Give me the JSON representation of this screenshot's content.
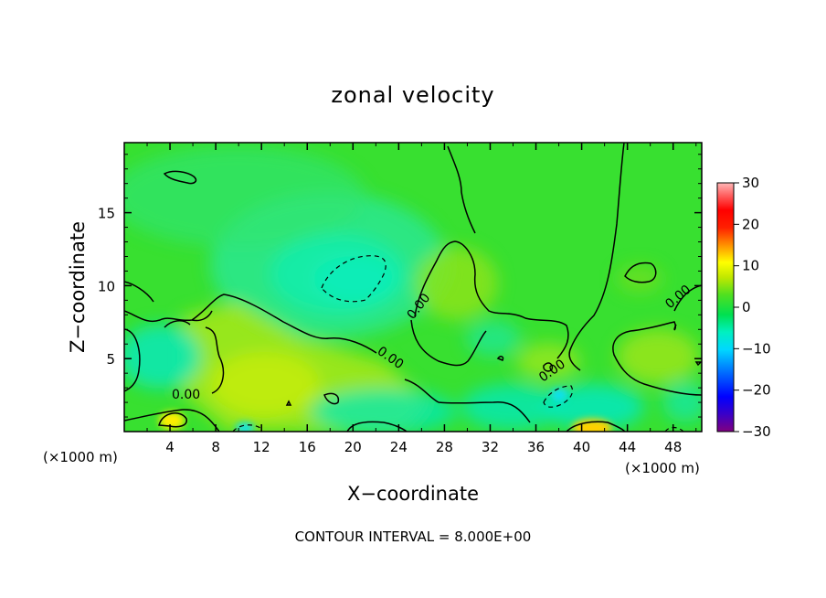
{
  "chart_data": {
    "type": "heatmap",
    "title": "zonal velocity",
    "xlabel": "X−coordinate",
    "ylabel": "Z−coordinate",
    "x_unit_left": "(×1000 m)",
    "x_unit_right": "(×1000 m)",
    "footer": "CONTOUR INTERVAL = 8.000E+00",
    "xlim": [
      0,
      50.5
    ],
    "ylim": [
      0,
      19.8
    ],
    "x_ticks": [
      "4",
      "8",
      "12",
      "16",
      "20",
      "24",
      "28",
      "32",
      "36",
      "40",
      "44",
      "48"
    ],
    "y_ticks": [
      "5",
      "10",
      "15"
    ],
    "colorbar": {
      "range": [
        -30,
        30
      ],
      "ticks": [
        "30",
        "20",
        "10",
        "0",
        "−10",
        "−20",
        "−30"
      ],
      "colors": [
        "#800080",
        "#3a00c8",
        "#0000ff",
        "#0070ff",
        "#00d8ff",
        "#00f0c0",
        "#00e050",
        "#50e020",
        "#c0e800",
        "#ffff00",
        "#ff9000",
        "#ff2000",
        "#ff0000",
        "#ff6060",
        "#ffb8b8"
      ]
    },
    "contour_labels": [
      "0.00",
      "0.00",
      "0.00",
      "0.00",
      "0.00"
    ],
    "grid": false,
    "colors": {
      "background_field": "#38e030",
      "contour": "#000000"
    }
  }
}
